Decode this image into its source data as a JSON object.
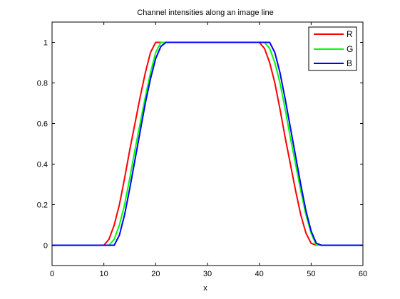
{
  "chart_data": {
    "type": "line",
    "title": "Channel intensities along an image line",
    "xlabel": "x",
    "ylabel": "",
    "xlim": [
      0,
      60
    ],
    "ylim": [
      -0.1,
      1.1
    ],
    "xticks": [
      0,
      10,
      20,
      30,
      40,
      50,
      60
    ],
    "yticks": [
      0,
      0.2,
      0.4,
      0.6,
      0.8,
      1
    ],
    "ytick_labels": [
      "0",
      "0.2",
      "0.4",
      "0.6",
      "0.8",
      "1"
    ],
    "grid": false,
    "legend_position": "top-right",
    "series": [
      {
        "name": "R",
        "color": "#ff0000",
        "x": [
          0,
          10,
          11,
          12,
          13,
          14,
          15,
          16,
          17,
          18,
          19,
          20,
          21,
          22,
          40,
          41,
          42,
          43,
          44,
          45,
          46,
          47,
          48,
          49,
          50,
          51,
          60
        ],
        "y": [
          0,
          0,
          0.03,
          0.1,
          0.2,
          0.33,
          0.47,
          0.6,
          0.73,
          0.85,
          0.95,
          1,
          1,
          1,
          1,
          0.97,
          0.9,
          0.8,
          0.67,
          0.53,
          0.4,
          0.27,
          0.15,
          0.06,
          0.01,
          0,
          0
        ]
      },
      {
        "name": "G",
        "color": "#00ff00",
        "x": [
          0,
          11,
          12,
          13,
          14,
          15,
          16,
          17,
          18,
          19,
          20,
          21,
          22,
          41,
          42,
          43,
          44,
          45,
          46,
          47,
          48,
          49,
          50,
          51,
          60
        ],
        "y": [
          0,
          0,
          0.03,
          0.1,
          0.2,
          0.33,
          0.47,
          0.6,
          0.73,
          0.85,
          0.95,
          1,
          1,
          1,
          0.97,
          0.9,
          0.8,
          0.67,
          0.53,
          0.4,
          0.27,
          0.15,
          0.06,
          0,
          0
        ]
      },
      {
        "name": "B",
        "color": "#0000ff",
        "x": [
          0,
          12,
          13,
          14,
          15,
          16,
          17,
          18,
          19,
          20,
          21,
          22,
          42,
          43,
          44,
          45,
          46,
          47,
          48,
          49,
          50,
          51,
          52,
          60
        ],
        "y": [
          0,
          0,
          0.05,
          0.15,
          0.28,
          0.42,
          0.56,
          0.7,
          0.82,
          0.92,
          0.98,
          1,
          1,
          0.95,
          0.85,
          0.72,
          0.58,
          0.44,
          0.3,
          0.17,
          0.07,
          0.01,
          0,
          0
        ]
      }
    ]
  }
}
